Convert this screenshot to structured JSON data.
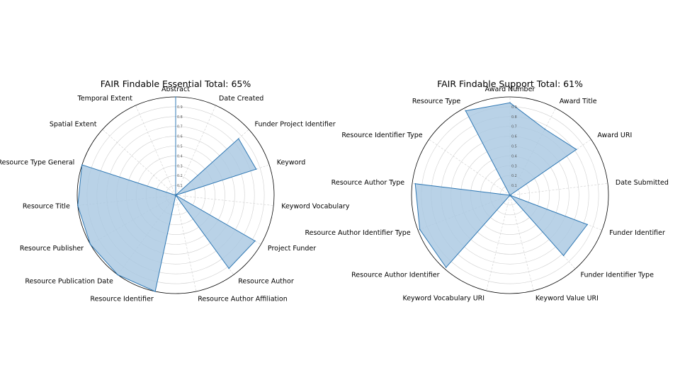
{
  "colors": {
    "fill": "#aac8e2",
    "stroke": "#2f78b4",
    "grid": "#cfcfcf",
    "frame": "#000000"
  },
  "chart_data": [
    {
      "type": "radar",
      "title": "FAIR Findable Essential  Total: 65%",
      "rlim": [
        0,
        1
      ],
      "radial_ticks": [
        "0.1",
        "0.2",
        "0.3",
        "0.4",
        "0.5",
        "0.6",
        "0.7",
        "0.8",
        "0.9"
      ],
      "radial_tick_values": [
        0.1,
        0.2,
        0.3,
        0.4,
        0.5,
        0.6,
        0.7,
        0.8,
        0.9
      ],
      "grid": true,
      "categories": [
        "Abstract",
        "Date Created",
        "Funder Project Identifier",
        "Keyword",
        "Keyword Vocabulary",
        "Project Funder",
        "Resource Author",
        "Resource Author Affiliation",
        "Resource Identifier",
        "Resource Publication Date",
        "Resource Publisher",
        "Resource Title",
        "Resource Type General",
        "Spatial Extent",
        "Temporal Extent"
      ],
      "values": [
        1,
        0,
        0.86,
        0.86,
        0,
        0.93,
        0.92,
        0,
        1,
        1,
        1,
        1,
        1,
        0,
        0
      ]
    },
    {
      "type": "radar",
      "title": "FAIR Findable Support  Total: 61%",
      "rlim": [
        0,
        1
      ],
      "radial_ticks": [
        "0.1",
        "0.2",
        "0.3",
        "0.4",
        "0.5",
        "0.6",
        "0.7",
        "0.8",
        "0.9"
      ],
      "radial_tick_values": [
        0.1,
        0.2,
        0.3,
        0.4,
        0.5,
        0.6,
        0.7,
        0.8,
        0.9
      ],
      "grid": true,
      "categories": [
        "Award Number",
        "Award Title",
        "Award URI",
        "Date Submitted",
        "Funder Identifier",
        "Funder Identifier Type",
        "Keyword Value URI",
        "Keyword Vocabulary URI",
        "Resource Author Identifier",
        "Resource Author Identifier Type",
        "Resource Author Type",
        "Resource Identifier Type",
        "Resource Type"
      ],
      "values": [
        0.94,
        0.76,
        0.82,
        0,
        0.84,
        0.82,
        0,
        0,
        0.98,
        0.98,
        0.97,
        0,
        0.97
      ]
    }
  ]
}
